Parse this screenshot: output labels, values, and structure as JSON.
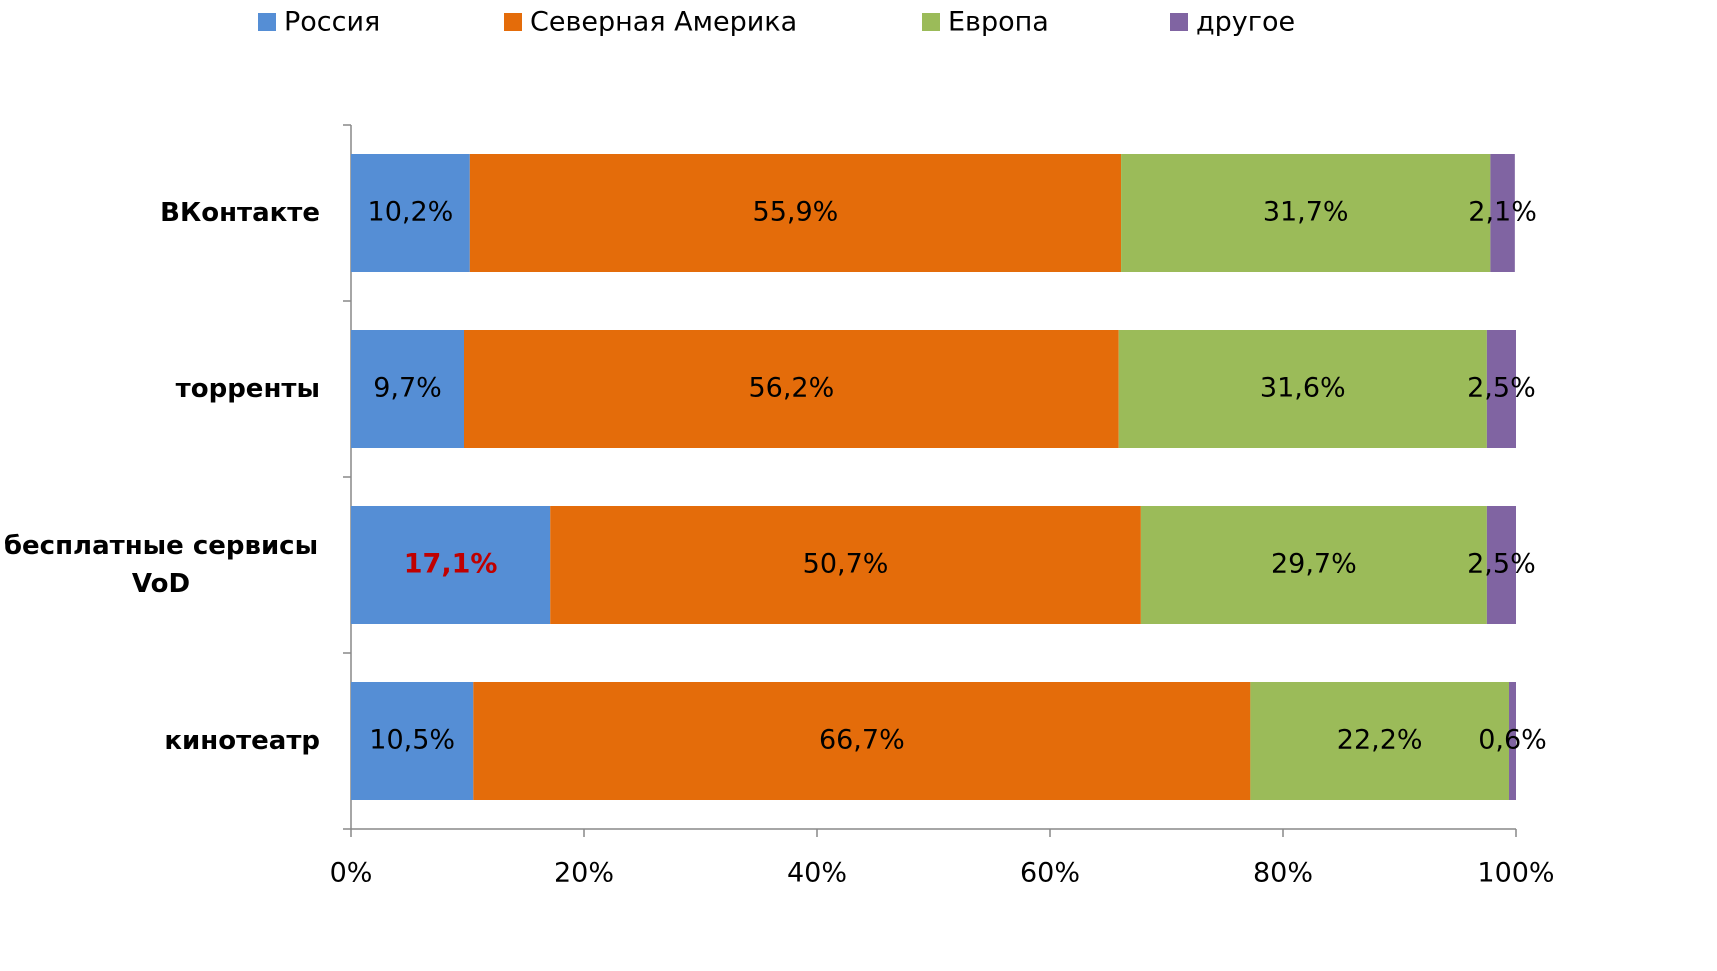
{
  "chart_data": {
    "type": "stacked-bar-horizontal",
    "categories": [
      "ВКонтакте",
      "торренты",
      "бесплатные сервисы VoD",
      "кинотеатр"
    ],
    "series": [
      {
        "name": "Россия",
        "color": "#558ed5",
        "values": [
          10.2,
          9.7,
          17.1,
          10.5
        ],
        "value_labels": [
          "10,2%",
          "9,7%",
          "17,1%",
          "10,5%"
        ],
        "highlight": [
          false,
          false,
          true,
          false
        ],
        "highlight_color": "#c00000"
      },
      {
        "name": "Северная Америка",
        "color": "#e46c0a",
        "values": [
          55.9,
          56.2,
          50.7,
          66.7
        ],
        "value_labels": [
          "55,9%",
          "56,2%",
          "50,7%",
          "66,7%"
        ]
      },
      {
        "name": "Европа",
        "color": "#9bbb59",
        "values": [
          31.7,
          31.6,
          29.7,
          22.2
        ],
        "value_labels": [
          "31,7%",
          "31,6%",
          "29,7%",
          "22,2%"
        ]
      },
      {
        "name": "другое",
        "color": "#8064a2",
        "values": [
          2.1,
          2.5,
          2.5,
          0.6
        ],
        "value_labels": [
          "2,1%",
          "2,5%",
          "2,5%",
          "0,6%"
        ]
      }
    ],
    "xlim": [
      0,
      100
    ],
    "xticks": [
      {
        "value": 0,
        "label": "0%"
      },
      {
        "value": 20,
        "label": "20%"
      },
      {
        "value": 40,
        "label": "40%"
      },
      {
        "value": 60,
        "label": "60%"
      },
      {
        "value": 80,
        "label": "80%"
      },
      {
        "value": 100,
        "label": "100%"
      }
    ],
    "legend": "top"
  }
}
